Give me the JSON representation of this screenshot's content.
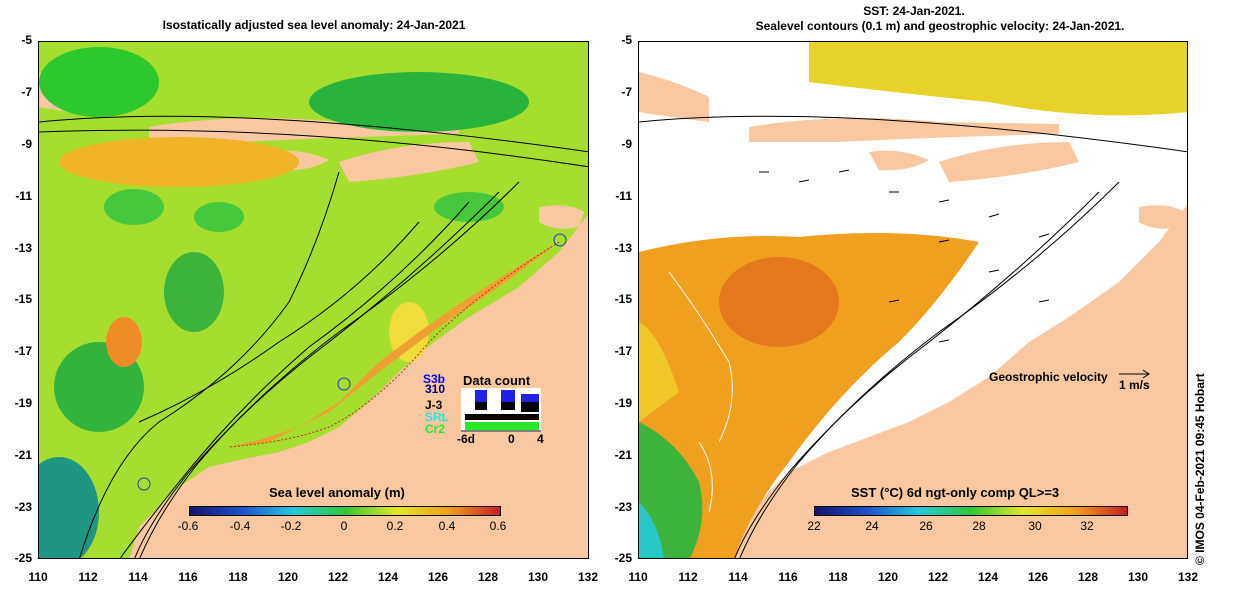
{
  "left": {
    "title": "Isostatically adjusted sea level anomaly: 24-Jan-2021",
    "colorbar": {
      "title": "Sea level anomaly (m)",
      "ticks": [
        "-0.6",
        "-0.4",
        "-0.2",
        "0",
        "0.2",
        "0.4",
        "0.6"
      ]
    },
    "data_count": {
      "title": "Data count",
      "satellites": [
        "S3b",
        "310",
        "J-3",
        "SRL",
        "Cr2"
      ],
      "axis": [
        "-6d",
        "0",
        "4"
      ]
    }
  },
  "right": {
    "title_line1": "SST: 24-Jan-2021.",
    "title_line2": "Sealevel contours (0.1 m) and geostrophic velocity: 24-Jan-2021.",
    "colorbar": {
      "title": "SST (°C) 6d ngt-only comp QL>=3",
      "ticks": [
        "22",
        "24",
        "26",
        "28",
        "30",
        "32"
      ]
    },
    "velocity_legend": "Geostrophic velocity",
    "velocity_unit": "1 m/s"
  },
  "axes": {
    "y_labels": [
      "-5",
      "-7",
      "-9",
      "-11",
      "-13",
      "-15",
      "-17",
      "-19",
      "-21",
      "-23",
      "-25"
    ],
    "x_labels": [
      "110",
      "112",
      "114",
      "116",
      "118",
      "120",
      "122",
      "124",
      "126",
      "128",
      "130",
      "132"
    ]
  },
  "credit": "© IMOS 04-Feb-2021 09:45 Hobart",
  "colors": {
    "land": "#f9c8a0",
    "sla_green": "#3cc83c",
    "sla_yellow": "#f0e628",
    "sst_orange": "#f0a01e",
    "sst_yellow": "#e6d228"
  }
}
